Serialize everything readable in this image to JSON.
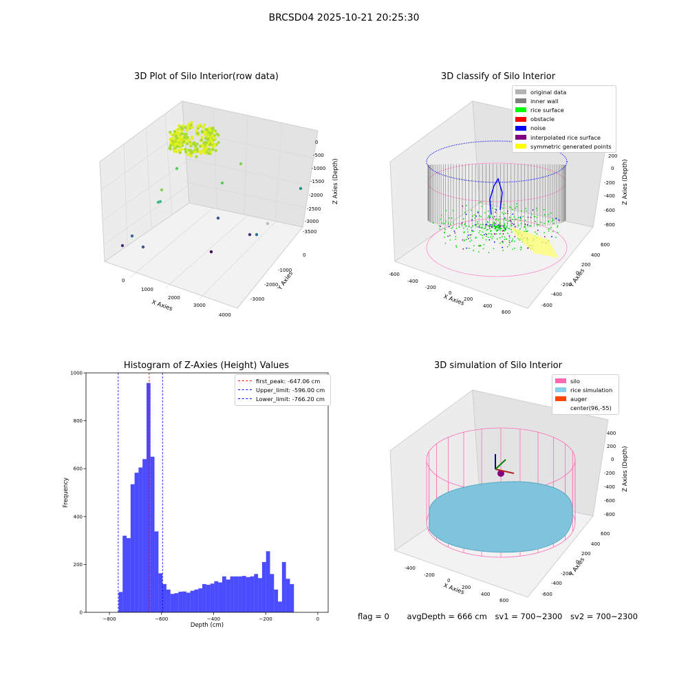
{
  "suptitle": "BRCSD04 2025-10-21 20:25:30",
  "panels": {
    "raw": {
      "title": "3D Plot of Silo Interior(row data)",
      "x_label": "X Axies",
      "y_label": "Y Axies",
      "z_label": "Z Axies (Depth)",
      "x_ticks": [
        "0",
        "1000",
        "2000",
        "3000",
        "4000"
      ],
      "y_ticks": [
        "0",
        "-1000",
        "-2000",
        "-3000"
      ],
      "z_ticks": [
        "0",
        "-500",
        "-1000",
        "-1500",
        "-2000",
        "-2500",
        "-3000",
        "-3500"
      ]
    },
    "classify": {
      "title": "3D classify of Silo Interior",
      "x_label": "X Axies",
      "y_label": "Y Axies",
      "z_label": "Z Axies (Depth)",
      "x_ticks": [
        "-600",
        "-400",
        "-200",
        "0",
        "200",
        "400",
        "600"
      ],
      "y_ticks": [
        "600",
        "400",
        "200",
        "0",
        "-200",
        "-400",
        "-600"
      ],
      "z_ticks": [
        "200",
        "0",
        "-200",
        "-400",
        "-600",
        "-800"
      ],
      "legend": [
        {
          "label": "original data",
          "color": "#b3b3b3"
        },
        {
          "label": "inner wall",
          "color": "#808080"
        },
        {
          "label": "rice surface",
          "color": "#00ff00"
        },
        {
          "label": "obstacle",
          "color": "#ff0000"
        },
        {
          "label": "noise",
          "color": "#0000ff"
        },
        {
          "label": "interpolated rice surface",
          "color": "#800080"
        },
        {
          "label": "symmetric generated points",
          "color": "#ffff00"
        }
      ]
    },
    "simulation": {
      "title": "3D simulation of Silo Interior",
      "x_label": "X Axies",
      "y_label": "Y Axies",
      "z_label": "Z Axies (Depth)",
      "x_ticks": [
        "-400",
        "-200",
        "0",
        "200",
        "400",
        "600"
      ],
      "y_ticks": [
        "600",
        "400",
        "200",
        "0",
        "-200",
        "-400",
        "-600"
      ],
      "z_ticks": [
        "400",
        "200",
        "0",
        "-200",
        "-400",
        "-600",
        "-800"
      ],
      "legend": [
        {
          "label": "silo",
          "color": "#ff69b4"
        },
        {
          "label": "rice simulation",
          "color": "#87ceeb"
        },
        {
          "label": "auger",
          "color": "#ff4500"
        },
        {
          "label": "center(96,-55)",
          "color": ""
        }
      ]
    }
  },
  "status": {
    "flag": "flag = 0",
    "avg_depth": "avgDepth = 666 cm",
    "sv1": "sv1 = 700~2300",
    "sv2": "sv2 = 700~2300"
  },
  "chart_data": [
    {
      "type": "scatter",
      "title": "3D Plot of Silo Interior(row data)",
      "xlabel": "X Axies",
      "ylabel": "Y Axies",
      "zlabel": "Z Axies (Depth)",
      "xlim": [
        -500,
        4200
      ],
      "ylim": [
        -3800,
        500
      ],
      "zlim": [
        -3700,
        200
      ]
    },
    {
      "type": "scatter",
      "title": "3D classify of Silo Interior",
      "xlabel": "X Axies",
      "ylabel": "Y Axies",
      "zlabel": "Z Axies (Depth)",
      "series": [
        {
          "name": "original data"
        },
        {
          "name": "inner wall"
        },
        {
          "name": "rice surface"
        },
        {
          "name": "obstacle"
        },
        {
          "name": "noise"
        },
        {
          "name": "interpolated rice surface"
        },
        {
          "name": "symmetric generated points"
        }
      ],
      "legend": "top-right"
    },
    {
      "type": "histogram",
      "title": "Histogram of Z-Axies (Height) Values",
      "xlabel": "Depth (cm)",
      "ylabel": "Frequency",
      "xlim": [
        -890,
        40
      ],
      "ylim": [
        0,
        1000
      ],
      "x_ticks": [
        -800,
        -600,
        -400,
        -200,
        0
      ],
      "y_ticks": [
        0,
        200,
        400,
        600,
        800,
        1000
      ],
      "bin_width": 15.3,
      "bin_start": -780,
      "counts": [
        0,
        85,
        320,
        310,
        535,
        583,
        605,
        640,
        958,
        650,
        338,
        163,
        118,
        95,
        77,
        80,
        86,
        87,
        82,
        90,
        95,
        100,
        118,
        115,
        120,
        130,
        125,
        150,
        137,
        150,
        150,
        150,
        152,
        147,
        150,
        160,
        143,
        210,
        255,
        160,
        95,
        45,
        210,
        140,
        118
      ],
      "bar_color": "#0000ff",
      "grid": false,
      "legend_position": "top-right",
      "lines": [
        {
          "label": "first_peak: -647.06 cm",
          "x": -647.06,
          "color": "#ff0000"
        },
        {
          "label": "Upper_limit: -596.00 cm",
          "x": -596.0,
          "color": "#0000ff"
        },
        {
          "label": "Lower_limit: -766.20 cm",
          "x": -766.2,
          "color": "#0000ff"
        }
      ]
    },
    {
      "type": "surface",
      "title": "3D simulation of Silo Interior",
      "xlabel": "X Axies",
      "ylabel": "Y Axies",
      "zlabel": "Z Axies (Depth)",
      "series": [
        {
          "name": "silo"
        },
        {
          "name": "rice simulation"
        },
        {
          "name": "auger"
        }
      ],
      "legend": "top-right"
    }
  ]
}
